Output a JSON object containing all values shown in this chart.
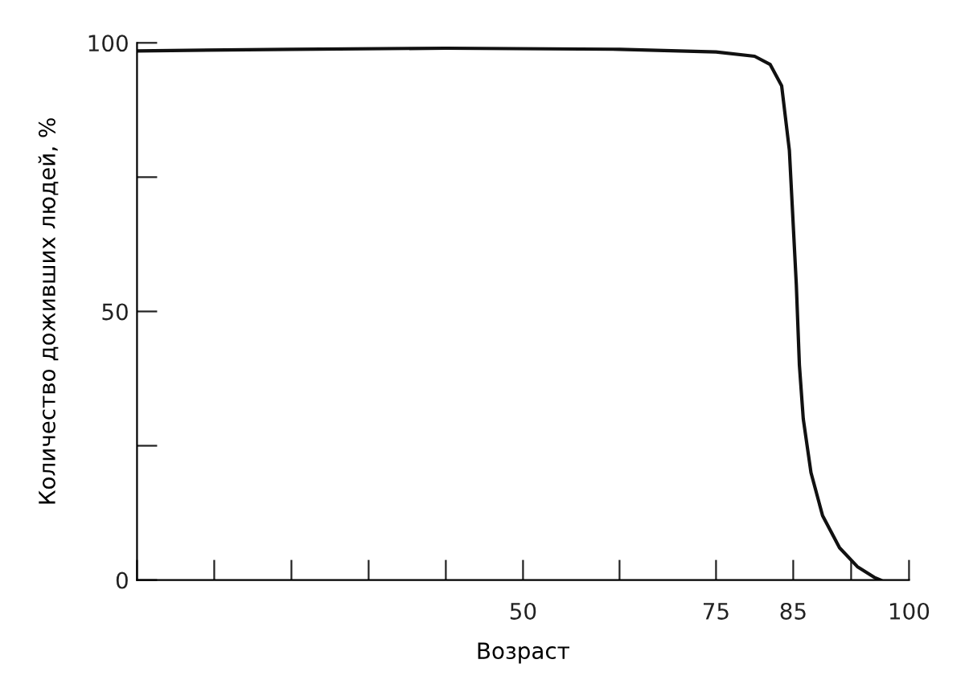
{
  "chart_data": {
    "type": "line",
    "xlabel": "Возраст",
    "ylabel": "Количество доживших людей, %",
    "x": [
      0,
      20,
      40,
      62.5,
      75,
      80,
      82,
      83.5,
      84.5,
      85.4,
      85.8,
      86.3,
      87.3,
      88.8,
      91,
      93.3,
      95.5,
      96.3
    ],
    "series": [
      {
        "color": "#111111",
        "values": [
          98.5,
          98.8,
          99,
          98.8,
          98.3,
          97.5,
          96,
          92,
          80,
          55,
          40,
          30,
          20,
          12,
          6,
          2.5,
          0.5,
          0
        ]
      }
    ],
    "xlim": [
      0,
      100
    ],
    "ylim": [
      0,
      100
    ],
    "xticks": [
      {
        "value": 0,
        "label": null
      },
      {
        "value": 10,
        "label": null
      },
      {
        "value": 20,
        "label": null
      },
      {
        "value": 30,
        "label": null
      },
      {
        "value": 40,
        "label": null
      },
      {
        "value": 50,
        "label": "50"
      },
      {
        "value": 62.5,
        "label": null
      },
      75,
      85,
      {
        "value": 92.5,
        "label": null
      },
      {
        "value": 100,
        "label": "100"
      }
    ],
    "yticks": [
      0,
      {
        "value": 25,
        "label": null
      },
      50,
      {
        "value": 75,
        "label": null
      },
      100
    ],
    "grid": false,
    "legend": false,
    "marker": "none",
    "line_style": "solid"
  }
}
